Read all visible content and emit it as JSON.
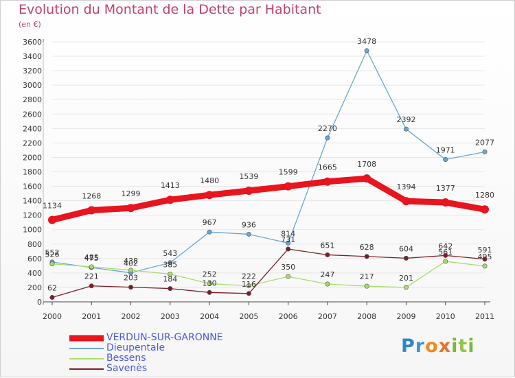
{
  "header": {
    "title": "Evolution du Montant de la Dette par Habitant",
    "subtitle": "(en €)"
  },
  "logo": {
    "text": "Proxiti"
  },
  "colors": {
    "title": "#c0406a",
    "axis_text": "#333333",
    "grid": "#e6e6e6",
    "tick_marker": "#c0406a"
  },
  "chart_data": {
    "type": "line",
    "title": "Evolution du Montant de la Dette par Habitant",
    "subtitle": "(en €)",
    "x": [
      "2000",
      "2001",
      "2002",
      "2003",
      "2004",
      "2005",
      "2006",
      "2007",
      "2008",
      "2009",
      "2010",
      "2011"
    ],
    "ylim": [
      0,
      3600
    ],
    "yticks": [
      0,
      200,
      400,
      600,
      800,
      1000,
      1200,
      1400,
      1600,
      1800,
      2000,
      2200,
      2400,
      2600,
      2800,
      3000,
      3200,
      3400,
      3600
    ],
    "grid": true,
    "legend_position": "bottom-left",
    "series": [
      {
        "name": "VERDUN-SUR-GARONNE",
        "color": "#e8141e",
        "emphasis": true,
        "values": [
          1134,
          1268,
          1299,
          1413,
          1480,
          1539,
          1599,
          1665,
          1708,
          1394,
          1377,
          1280
        ]
      },
      {
        "name": "Dieupentale",
        "color": "#6aa6d6",
        "emphasis": false,
        "values": [
          552,
          475,
          402,
          543,
          967,
          936,
          814,
          2270,
          3478,
          2392,
          1971,
          2077
        ]
      },
      {
        "name": "Bessens",
        "color": "#a6dc6a",
        "emphasis": false,
        "values": [
          526,
          485,
          438,
          385,
          252,
          222,
          350,
          247,
          217,
          201,
          561,
          495
        ]
      },
      {
        "name": "Savenès",
        "color": "#7a1f2a",
        "emphasis": false,
        "values": [
          62,
          221,
          203,
          184,
          130,
          116,
          731,
          651,
          628,
          604,
          642,
          591
        ]
      }
    ]
  }
}
